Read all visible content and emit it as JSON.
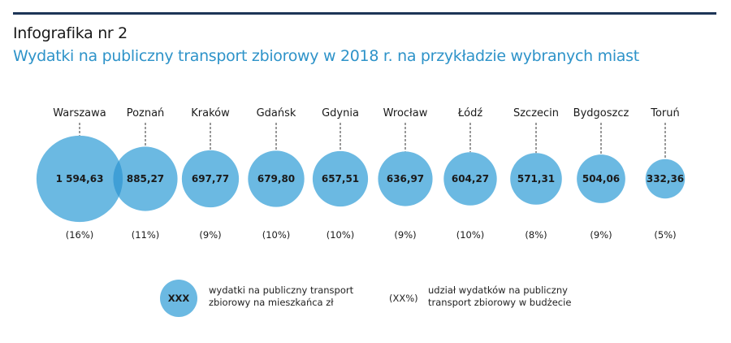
{
  "header": {
    "title": "Infografika nr 2",
    "subtitle": "Wydatki na publiczny transport zbiorowy w 2018 r. na przykładzie wybranych miast"
  },
  "chart_data": {
    "type": "bubble",
    "title": "Wydatki na publiczny transport zbiorowy w 2018 r. na przykładzie wybranych miast",
    "categories": [
      "Warszawa",
      "Poznań",
      "Kraków",
      "Gdańsk",
      "Gdynia",
      "Wrocław",
      "Łódź",
      "Szczecin",
      "Bydgoszcz",
      "Toruń"
    ],
    "values": [
      1594.63,
      885.27,
      697.77,
      679.8,
      657.51,
      636.97,
      604.27,
      571.31,
      504.06,
      332.36
    ],
    "value_labels": [
      "1 594,63",
      "885,27",
      "697,77",
      "679,80",
      "657,51",
      "636,97",
      "604,27",
      "571,31",
      "504,06",
      "332,36"
    ],
    "share_labels": [
      "(16%)",
      "(11%)",
      "(9%)",
      "(10%)",
      "(10%)",
      "(9%)",
      "(10%)",
      "(8%)",
      "(9%)",
      "(5%)"
    ],
    "colors": {
      "bubble": "#6bb9e2",
      "overlap": "#3f9fd6"
    }
  },
  "legend": {
    "bubble_text": "XXX",
    "bubble_desc_1": "wydatki na publiczny transport",
    "bubble_desc_2": "zbiorowy na mieszkańca zł",
    "share_text": "(XX%)",
    "share_desc_1": "udział wydatków na publiczny",
    "share_desc_2": "transport zbiorowy w budżecie"
  }
}
